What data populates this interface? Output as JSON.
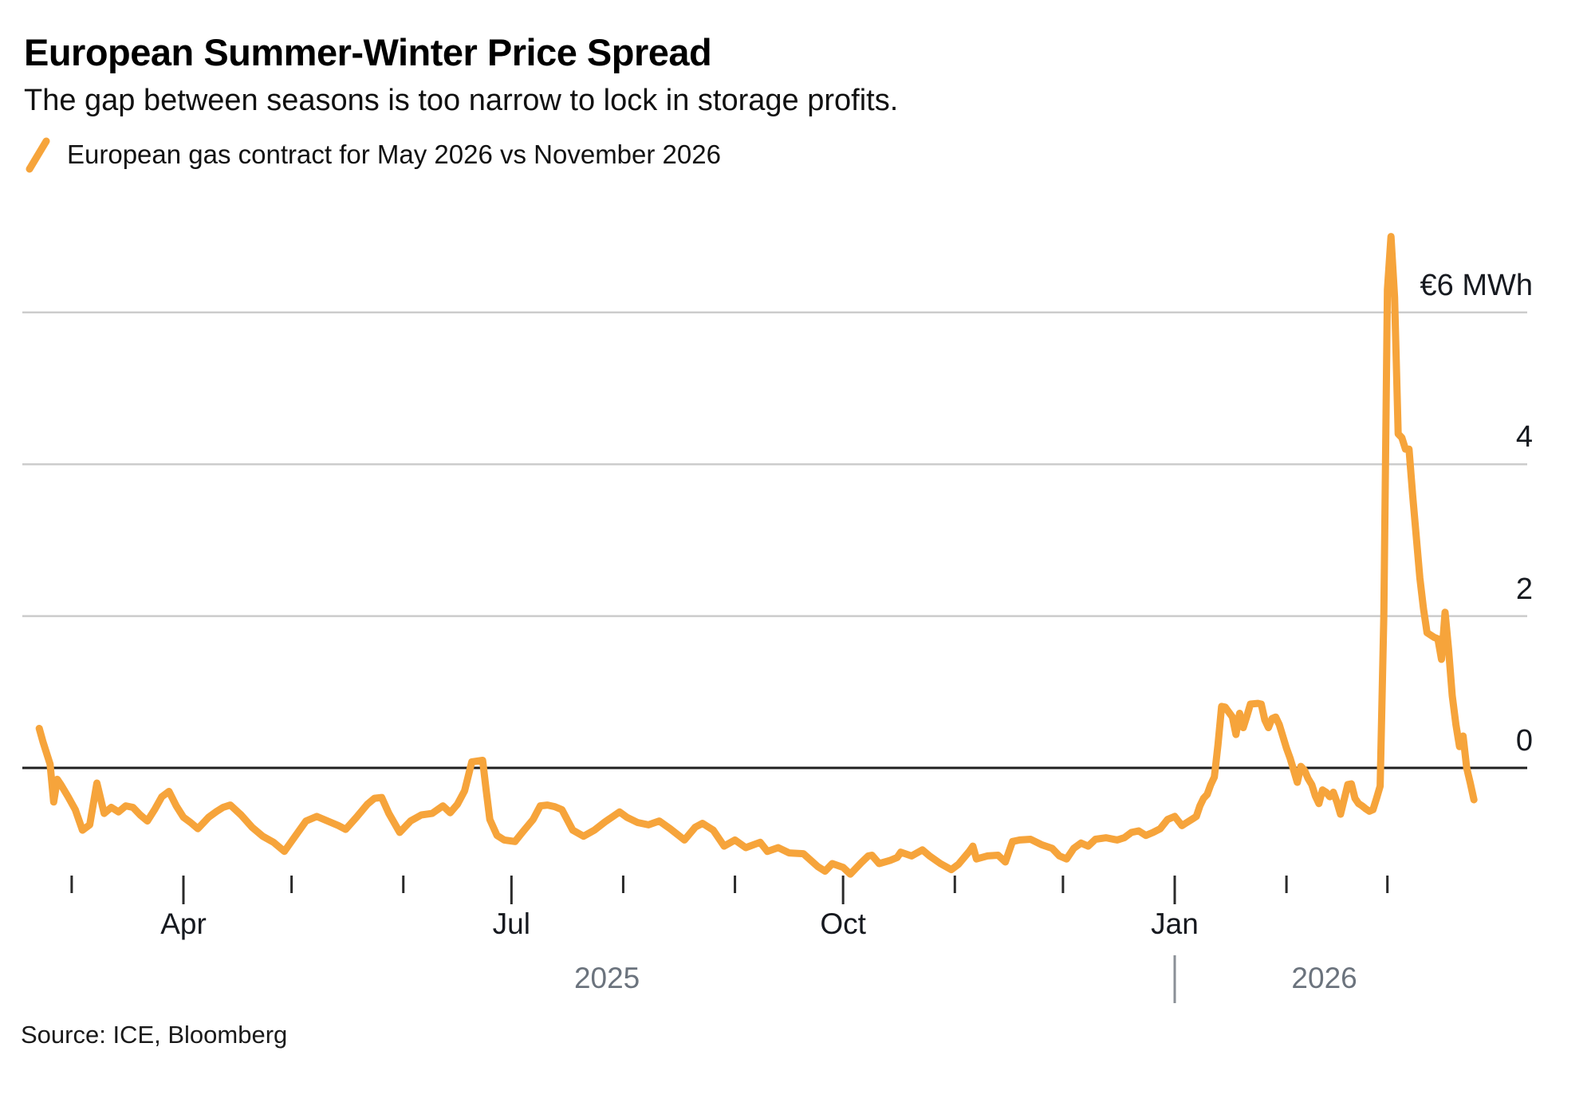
{
  "page": {
    "background": "#ffffff"
  },
  "header": {
    "title": "European Summer-Winter Price Spread",
    "subtitle": "The gap between seasons is too narrow to lock in storage profits."
  },
  "legend": {
    "marker": "orange-slash",
    "series_label": "European gas contract for May 2026 vs November 2026"
  },
  "footer": {
    "source": "Source: ICE, Bloomberg"
  },
  "colors": {
    "line": "#F6A43B",
    "grid": "#cccccc",
    "zero_line": "#1f1f1f",
    "tick": "#2b2b2b",
    "year_text": "#6b737d"
  },
  "chart_data": {
    "type": "line",
    "title": "European Summer-Winter Price Spread",
    "subtitle": "The gap between seasons is too narrow to lock in storage profits.",
    "unit": "EUR per MWh",
    "grid": true,
    "legend_position": "top-left",
    "y_axis": {
      "side": "right",
      "range": [
        -1.6,
        7.3
      ],
      "zero_baseline": true,
      "ticks": [
        {
          "value": 6,
          "label": "€6 MWh"
        },
        {
          "value": 4,
          "label": "4"
        },
        {
          "value": 2,
          "label": "2"
        },
        {
          "value": 0,
          "label": "0"
        }
      ]
    },
    "x_axis": {
      "range": [
        "2025-02-20",
        "2026-03-25"
      ],
      "year_divider_date": "2026-01-01",
      "year_labels": [
        {
          "year": "2025"
        },
        {
          "year": "2026"
        }
      ],
      "month_ticks": [
        {
          "date": "2025-03-01",
          "label": ""
        },
        {
          "date": "2025-04-01",
          "label": "Apr"
        },
        {
          "date": "2025-05-01",
          "label": ""
        },
        {
          "date": "2025-06-01",
          "label": ""
        },
        {
          "date": "2025-07-01",
          "label": "Jul"
        },
        {
          "date": "2025-08-01",
          "label": ""
        },
        {
          "date": "2025-09-01",
          "label": ""
        },
        {
          "date": "2025-10-01",
          "label": "Oct"
        },
        {
          "date": "2025-11-01",
          "label": ""
        },
        {
          "date": "2025-12-01",
          "label": ""
        },
        {
          "date": "2026-01-01",
          "label": "Jan"
        },
        {
          "date": "2026-02-01",
          "label": ""
        },
        {
          "date": "2026-03-01",
          "label": ""
        }
      ]
    },
    "series": [
      {
        "name": "European gas contract for May 2026 vs November 2026",
        "color": "#F6A43B",
        "points": [
          [
            "2025-02-20",
            0.52
          ],
          [
            "2025-02-21",
            0.35
          ],
          [
            "2025-02-23",
            0.05
          ],
          [
            "2025-02-24",
            -0.45
          ],
          [
            "2025-02-25",
            -0.15
          ],
          [
            "2025-02-26",
            -0.22
          ],
          [
            "2025-02-28",
            -0.38
          ],
          [
            "2025-03-02",
            -0.55
          ],
          [
            "2025-03-04",
            -0.82
          ],
          [
            "2025-03-06",
            -0.75
          ],
          [
            "2025-03-08",
            -0.2
          ],
          [
            "2025-03-10",
            -0.6
          ],
          [
            "2025-03-12",
            -0.52
          ],
          [
            "2025-03-14",
            -0.58
          ],
          [
            "2025-03-16",
            -0.5
          ],
          [
            "2025-03-18",
            -0.52
          ],
          [
            "2025-03-20",
            -0.62
          ],
          [
            "2025-03-22",
            -0.7
          ],
          [
            "2025-03-24",
            -0.55
          ],
          [
            "2025-03-26",
            -0.38
          ],
          [
            "2025-03-28",
            -0.31
          ],
          [
            "2025-03-30",
            -0.5
          ],
          [
            "2025-04-01",
            -0.65
          ],
          [
            "2025-04-03",
            -0.72
          ],
          [
            "2025-04-05",
            -0.8
          ],
          [
            "2025-04-08",
            -0.65
          ],
          [
            "2025-04-10",
            -0.58
          ],
          [
            "2025-04-12",
            -0.52
          ],
          [
            "2025-04-14",
            -0.49
          ],
          [
            "2025-04-17",
            -0.62
          ],
          [
            "2025-04-20",
            -0.78
          ],
          [
            "2025-04-23",
            -0.9
          ],
          [
            "2025-04-26",
            -0.98
          ],
          [
            "2025-04-29",
            -1.1
          ],
          [
            "2025-05-02",
            -0.9
          ],
          [
            "2025-05-05",
            -0.7
          ],
          [
            "2025-05-08",
            -0.64
          ],
          [
            "2025-05-11",
            -0.7
          ],
          [
            "2025-05-14",
            -0.76
          ],
          [
            "2025-05-16",
            -0.81
          ],
          [
            "2025-05-19",
            -0.65
          ],
          [
            "2025-05-22",
            -0.48
          ],
          [
            "2025-05-24",
            -0.4
          ],
          [
            "2025-05-26",
            -0.39
          ],
          [
            "2025-05-28",
            -0.6
          ],
          [
            "2025-05-31",
            -0.85
          ],
          [
            "2025-06-03",
            -0.7
          ],
          [
            "2025-06-06",
            -0.62
          ],
          [
            "2025-06-09",
            -0.6
          ],
          [
            "2025-06-12",
            -0.5
          ],
          [
            "2025-06-14",
            -0.59
          ],
          [
            "2025-06-16",
            -0.48
          ],
          [
            "2025-06-18",
            -0.3
          ],
          [
            "2025-06-20",
            0.08
          ],
          [
            "2025-06-23",
            0.1
          ],
          [
            "2025-06-24",
            -0.3
          ],
          [
            "2025-06-25",
            -0.68
          ],
          [
            "2025-06-27",
            -0.89
          ],
          [
            "2025-06-29",
            -0.95
          ],
          [
            "2025-07-02",
            -0.97
          ],
          [
            "2025-07-04",
            -0.85
          ],
          [
            "2025-07-07",
            -0.68
          ],
          [
            "2025-07-09",
            -0.5
          ],
          [
            "2025-07-11",
            -0.49
          ],
          [
            "2025-07-13",
            -0.51
          ],
          [
            "2025-07-15",
            -0.55
          ],
          [
            "2025-07-18",
            -0.82
          ],
          [
            "2025-07-21",
            -0.9
          ],
          [
            "2025-07-24",
            -0.82
          ],
          [
            "2025-07-27",
            -0.71
          ],
          [
            "2025-07-31",
            -0.58
          ],
          [
            "2025-08-02",
            -0.65
          ],
          [
            "2025-08-05",
            -0.72
          ],
          [
            "2025-08-08",
            -0.75
          ],
          [
            "2025-08-11",
            -0.7
          ],
          [
            "2025-08-14",
            -0.8
          ],
          [
            "2025-08-18",
            -0.95
          ],
          [
            "2025-08-21",
            -0.78
          ],
          [
            "2025-08-23",
            -0.73
          ],
          [
            "2025-08-26",
            -0.82
          ],
          [
            "2025-08-29",
            -1.03
          ],
          [
            "2025-09-01",
            -0.95
          ],
          [
            "2025-09-04",
            -1.05
          ],
          [
            "2025-09-08",
            -0.98
          ],
          [
            "2025-09-10",
            -1.1
          ],
          [
            "2025-09-13",
            -1.05
          ],
          [
            "2025-09-16",
            -1.12
          ],
          [
            "2025-09-20",
            -1.13
          ],
          [
            "2025-09-24",
            -1.3
          ],
          [
            "2025-09-26",
            -1.36
          ],
          [
            "2025-09-28",
            -1.26
          ],
          [
            "2025-10-01",
            -1.31
          ],
          [
            "2025-10-03",
            -1.4
          ],
          [
            "2025-10-06",
            -1.25
          ],
          [
            "2025-10-08",
            -1.16
          ],
          [
            "2025-10-09",
            -1.15
          ],
          [
            "2025-10-11",
            -1.26
          ],
          [
            "2025-10-14",
            -1.22
          ],
          [
            "2025-10-16",
            -1.18
          ],
          [
            "2025-10-17",
            -1.11
          ],
          [
            "2025-10-20",
            -1.16
          ],
          [
            "2025-10-23",
            -1.08
          ],
          [
            "2025-10-25",
            -1.16
          ],
          [
            "2025-10-28",
            -1.26
          ],
          [
            "2025-10-31",
            -1.34
          ],
          [
            "2025-11-02",
            -1.27
          ],
          [
            "2025-11-05",
            -1.1
          ],
          [
            "2025-11-06",
            -1.03
          ],
          [
            "2025-11-07",
            -1.2
          ],
          [
            "2025-11-10",
            -1.16
          ],
          [
            "2025-11-13",
            -1.15
          ],
          [
            "2025-11-15",
            -1.24
          ],
          [
            "2025-11-17",
            -0.97
          ],
          [
            "2025-11-19",
            -0.95
          ],
          [
            "2025-11-22",
            -0.94
          ],
          [
            "2025-11-25",
            -1.01
          ],
          [
            "2025-11-28",
            -1.06
          ],
          [
            "2025-11-30",
            -1.16
          ],
          [
            "2025-12-02",
            -1.2
          ],
          [
            "2025-12-04",
            -1.06
          ],
          [
            "2025-12-06",
            -0.99
          ],
          [
            "2025-12-08",
            -1.03
          ],
          [
            "2025-12-10",
            -0.94
          ],
          [
            "2025-12-13",
            -0.92
          ],
          [
            "2025-12-16",
            -0.95
          ],
          [
            "2025-12-18",
            -0.92
          ],
          [
            "2025-12-20",
            -0.85
          ],
          [
            "2025-12-22",
            -0.83
          ],
          [
            "2025-12-24",
            -0.89
          ],
          [
            "2025-12-26",
            -0.85
          ],
          [
            "2025-12-28",
            -0.8
          ],
          [
            "2025-12-30",
            -0.68
          ],
          [
            "2026-01-01",
            -0.64
          ],
          [
            "2026-01-03",
            -0.76
          ],
          [
            "2026-01-04",
            -0.73
          ],
          [
            "2026-01-06",
            -0.67
          ],
          [
            "2026-01-07",
            -0.64
          ],
          [
            "2026-01-08",
            -0.5
          ],
          [
            "2026-01-09",
            -0.4
          ],
          [
            "2026-01-10",
            -0.35
          ],
          [
            "2026-01-11",
            -0.22
          ],
          [
            "2026-01-12",
            -0.12
          ],
          [
            "2026-01-13",
            0.3
          ],
          [
            "2026-01-14",
            0.81
          ],
          [
            "2026-01-15",
            0.8
          ],
          [
            "2026-01-17",
            0.67
          ],
          [
            "2026-01-18",
            0.44
          ],
          [
            "2026-01-19",
            0.72
          ],
          [
            "2026-01-20",
            0.53
          ],
          [
            "2026-01-21",
            0.68
          ],
          [
            "2026-01-22",
            0.84
          ],
          [
            "2026-01-24",
            0.85
          ],
          [
            "2026-01-25",
            0.84
          ],
          [
            "2026-01-26",
            0.63
          ],
          [
            "2026-01-27",
            0.53
          ],
          [
            "2026-01-28",
            0.65
          ],
          [
            "2026-01-29",
            0.67
          ],
          [
            "2026-01-30",
            0.57
          ],
          [
            "2026-02-01",
            0.26
          ],
          [
            "2026-02-02",
            0.13
          ],
          [
            "2026-02-03",
            -0.03
          ],
          [
            "2026-02-04",
            -0.19
          ],
          [
            "2026-02-05",
            0.02
          ],
          [
            "2026-02-06",
            -0.03
          ],
          [
            "2026-02-07",
            -0.14
          ],
          [
            "2026-02-08",
            -0.22
          ],
          [
            "2026-02-09",
            -0.37
          ],
          [
            "2026-02-10",
            -0.47
          ],
          [
            "2026-02-11",
            -0.29
          ],
          [
            "2026-02-12",
            -0.32
          ],
          [
            "2026-02-13",
            -0.38
          ],
          [
            "2026-02-14",
            -0.32
          ],
          [
            "2026-02-15",
            -0.45
          ],
          [
            "2026-02-16",
            -0.61
          ],
          [
            "2026-02-18",
            -0.22
          ],
          [
            "2026-02-19",
            -0.21
          ],
          [
            "2026-02-20",
            -0.4
          ],
          [
            "2026-02-21",
            -0.47
          ],
          [
            "2026-02-22",
            -0.5
          ],
          [
            "2026-02-23",
            -0.54
          ],
          [
            "2026-02-24",
            -0.57
          ],
          [
            "2026-02-25",
            -0.55
          ],
          [
            "2026-02-26",
            -0.4
          ],
          [
            "2026-02-27",
            -0.24
          ],
          [
            "2026-02-28",
            2.0
          ],
          [
            "2026-03-01",
            6.3
          ],
          [
            "2026-03-02",
            7.0
          ],
          [
            "2026-03-03",
            6.2
          ],
          [
            "2026-03-04",
            4.4
          ],
          [
            "2026-03-05",
            4.35
          ],
          [
            "2026-03-06",
            4.2
          ],
          [
            "2026-03-07",
            4.2
          ],
          [
            "2026-03-08",
            3.6
          ],
          [
            "2026-03-10",
            2.5
          ],
          [
            "2026-03-11",
            2.1
          ],
          [
            "2026-03-12",
            1.78
          ],
          [
            "2026-03-14",
            1.72
          ],
          [
            "2026-03-15",
            1.7
          ],
          [
            "2026-03-16",
            1.43
          ],
          [
            "2026-03-17",
            2.05
          ],
          [
            "2026-03-18",
            1.55
          ],
          [
            "2026-03-19",
            0.95
          ],
          [
            "2026-03-20",
            0.57
          ],
          [
            "2026-03-21",
            0.28
          ],
          [
            "2026-03-22",
            0.42
          ],
          [
            "2026-03-23",
            0.0
          ],
          [
            "2026-03-24",
            -0.2
          ],
          [
            "2026-03-25",
            -0.42
          ]
        ]
      }
    ]
  }
}
